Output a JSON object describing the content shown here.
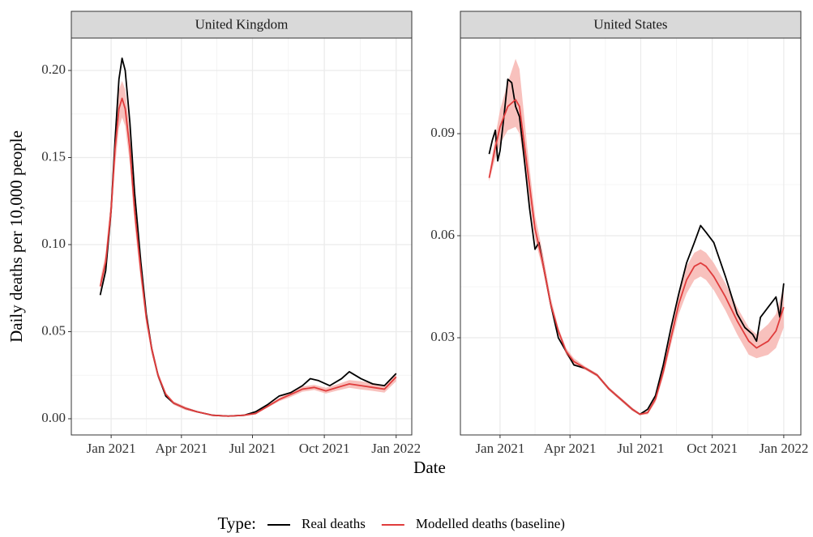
{
  "ylabel": "Daily deaths per 10,000 people",
  "xlabel": "Date",
  "legend_title": "Type:",
  "chart_data": [
    {
      "type": "line",
      "title": "United Kingdom",
      "xlim": [
        -51,
        385
      ],
      "ylim": [
        -0.0093,
        0.2186
      ],
      "grid": true,
      "xticks": [
        {
          "value": 0,
          "label": "Jan 2021"
        },
        {
          "value": 90,
          "label": "Apr 2021"
        },
        {
          "value": 181,
          "label": "Jul 2021"
        },
        {
          "value": 273,
          "label": "Oct 2021"
        },
        {
          "value": 365,
          "label": "Jan 2022"
        }
      ],
      "yticks": [
        {
          "value": 0,
          "label": "0.00"
        },
        {
          "value": 0.05,
          "label": "0.05"
        },
        {
          "value": 0.1,
          "label": "0.10"
        },
        {
          "value": 0.15,
          "label": "0.15"
        },
        {
          "value": 0.2,
          "label": "0.20"
        }
      ],
      "series": [
        {
          "name": "Real deaths",
          "color": "#000000",
          "x": [
            -14,
            -7,
            0,
            5,
            10,
            14,
            18,
            24,
            30,
            38,
            45,
            52,
            60,
            70,
            80,
            95,
            110,
            130,
            150,
            170,
            185,
            200,
            215,
            230,
            245,
            255,
            265,
            280,
            295,
            305,
            320,
            335,
            350,
            365
          ],
          "values": [
            0.071,
            0.085,
            0.12,
            0.16,
            0.195,
            0.207,
            0.2,
            0.17,
            0.13,
            0.09,
            0.06,
            0.04,
            0.025,
            0.013,
            0.009,
            0.006,
            0.004,
            0.002,
            0.0015,
            0.002,
            0.004,
            0.008,
            0.013,
            0.015,
            0.019,
            0.023,
            0.022,
            0.019,
            0.023,
            0.027,
            0.023,
            0.02,
            0.019,
            0.026
          ]
        },
        {
          "name": "Modelled deaths (baseline)",
          "color": "#e03c3c",
          "band_color": "#f7b6b2",
          "x": [
            -14,
            -7,
            0,
            5,
            10,
            14,
            18,
            24,
            30,
            38,
            45,
            52,
            60,
            70,
            80,
            95,
            110,
            130,
            150,
            170,
            185,
            200,
            215,
            230,
            245,
            260,
            275,
            290,
            305,
            320,
            335,
            350,
            365
          ],
          "values": [
            0.076,
            0.09,
            0.12,
            0.155,
            0.178,
            0.184,
            0.178,
            0.155,
            0.12,
            0.085,
            0.058,
            0.04,
            0.025,
            0.014,
            0.009,
            0.006,
            0.004,
            0.002,
            0.0015,
            0.002,
            0.003,
            0.007,
            0.011,
            0.014,
            0.017,
            0.018,
            0.016,
            0.018,
            0.02,
            0.019,
            0.018,
            0.017,
            0.024
          ],
          "lower": [
            0.073,
            0.086,
            0.113,
            0.145,
            0.167,
            0.173,
            0.168,
            0.146,
            0.112,
            0.079,
            0.054,
            0.037,
            0.023,
            0.013,
            0.008,
            0.005,
            0.0035,
            0.0018,
            0.0013,
            0.0018,
            0.0027,
            0.0063,
            0.01,
            0.0125,
            0.0155,
            0.0165,
            0.0145,
            0.0162,
            0.0178,
            0.0168,
            0.016,
            0.015,
            0.0215
          ],
          "upper": [
            0.08,
            0.095,
            0.128,
            0.165,
            0.189,
            0.194,
            0.189,
            0.165,
            0.129,
            0.092,
            0.063,
            0.043,
            0.027,
            0.015,
            0.01,
            0.007,
            0.0045,
            0.0022,
            0.0017,
            0.0022,
            0.0033,
            0.0077,
            0.012,
            0.0155,
            0.0185,
            0.0195,
            0.0178,
            0.0198,
            0.0222,
            0.0215,
            0.0205,
            0.0192,
            0.0265
          ]
        }
      ]
    },
    {
      "type": "line",
      "title": "United States",
      "xlim": [
        -51,
        387
      ],
      "ylim": [
        0.00143,
        0.1181
      ],
      "grid": true,
      "xticks": [
        {
          "value": 0,
          "label": "Jan 2021"
        },
        {
          "value": 90,
          "label": "Apr 2021"
        },
        {
          "value": 181,
          "label": "Jul 2021"
        },
        {
          "value": 273,
          "label": "Oct 2021"
        },
        {
          "value": 365,
          "label": "Jan 2022"
        }
      ],
      "yticks": [
        0.03,
        0.06,
        0.09
      ],
      "series": [
        {
          "name": "Real deaths",
          "color": "#000000",
          "x": [
            -14,
            -10,
            -6,
            -3,
            0,
            5,
            10,
            15,
            20,
            25,
            30,
            38,
            45,
            50,
            55,
            65,
            75,
            85,
            95,
            110,
            125,
            140,
            155,
            170,
            180,
            190,
            200,
            210,
            220,
            230,
            240,
            250,
            258,
            265,
            275,
            290,
            305,
            315,
            325,
            330,
            335,
            345,
            355,
            360,
            365
          ],
          "values": [
            0.084,
            0.088,
            0.091,
            0.082,
            0.085,
            0.095,
            0.106,
            0.105,
            0.098,
            0.095,
            0.085,
            0.068,
            0.056,
            0.058,
            0.052,
            0.04,
            0.03,
            0.026,
            0.022,
            0.021,
            0.019,
            0.015,
            0.012,
            0.009,
            0.0075,
            0.009,
            0.013,
            0.022,
            0.033,
            0.043,
            0.052,
            0.058,
            0.063,
            0.061,
            0.058,
            0.048,
            0.037,
            0.033,
            0.031,
            0.029,
            0.036,
            0.039,
            0.042,
            0.036,
            0.046
          ]
        },
        {
          "name": "Modelled deaths (baseline)",
          "color": "#e03c3c",
          "band_color": "#f7b6b2",
          "x": [
            -14,
            -7,
            0,
            10,
            20,
            25,
            35,
            45,
            55,
            65,
            75,
            85,
            95,
            110,
            125,
            140,
            155,
            170,
            180,
            190,
            200,
            210,
            220,
            230,
            240,
            250,
            258,
            265,
            275,
            290,
            305,
            320,
            330,
            345,
            355,
            365
          ],
          "values": [
            0.077,
            0.085,
            0.092,
            0.098,
            0.1,
            0.098,
            0.08,
            0.062,
            0.052,
            0.04,
            0.032,
            0.026,
            0.023,
            0.021,
            0.019,
            0.015,
            0.012,
            0.009,
            0.0075,
            0.008,
            0.012,
            0.02,
            0.03,
            0.04,
            0.047,
            0.051,
            0.052,
            0.051,
            0.048,
            0.042,
            0.035,
            0.029,
            0.027,
            0.029,
            0.032,
            0.039
          ],
          "lower": [
            0.076,
            0.082,
            0.087,
            0.091,
            0.092,
            0.09,
            0.075,
            0.059,
            0.05,
            0.039,
            0.031,
            0.025,
            0.022,
            0.0205,
            0.0185,
            0.0145,
            0.0115,
            0.0085,
            0.0072,
            0.0075,
            0.011,
            0.0185,
            0.028,
            0.037,
            0.043,
            0.047,
            0.048,
            0.047,
            0.044,
            0.038,
            0.031,
            0.025,
            0.024,
            0.025,
            0.027,
            0.033
          ],
          "upper": [
            0.078,
            0.088,
            0.097,
            0.105,
            0.112,
            0.109,
            0.086,
            0.066,
            0.055,
            0.042,
            0.033,
            0.027,
            0.024,
            0.0215,
            0.0195,
            0.0155,
            0.0125,
            0.0095,
            0.0078,
            0.0085,
            0.013,
            0.0215,
            0.032,
            0.043,
            0.051,
            0.055,
            0.056,
            0.055,
            0.052,
            0.046,
            0.039,
            0.033,
            0.031,
            0.034,
            0.037,
            0.045
          ]
        }
      ]
    }
  ]
}
